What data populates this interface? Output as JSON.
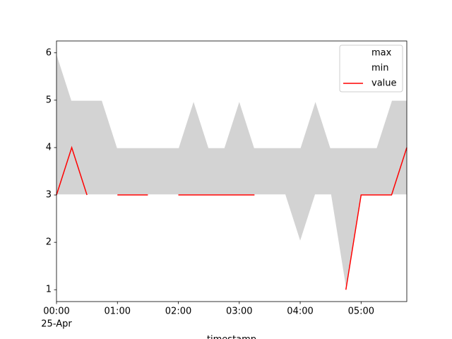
{
  "chart_data": {
    "type": "line",
    "x": [
      "00:00",
      "00:15",
      "00:30",
      "00:45",
      "01:00",
      "01:15",
      "01:30",
      "01:45",
      "02:00",
      "02:15",
      "02:30",
      "02:45",
      "03:00",
      "03:15",
      "03:30",
      "03:45",
      "04:00",
      "04:15",
      "04:30",
      "04:45",
      "05:00",
      "05:15",
      "05:30",
      "05:45"
    ],
    "series": [
      {
        "name": "max",
        "color": "#ffffff",
        "values": [
          6,
          5,
          5,
          5,
          4,
          4,
          4,
          4,
          4,
          5,
          4,
          4,
          5,
          4,
          4,
          4,
          4,
          5,
          4,
          4,
          4,
          4,
          5,
          5
        ]
      },
      {
        "name": "min",
        "color": "#ffffff",
        "values": [
          3,
          3,
          3,
          3,
          3,
          3,
          3,
          3,
          3,
          3,
          3,
          3,
          3,
          3,
          3,
          3,
          2,
          3,
          3,
          1,
          3,
          3,
          3,
          3
        ]
      },
      {
        "name": "value",
        "color": "#ff0000",
        "values": [
          3,
          4,
          3,
          null,
          3,
          3,
          3,
          null,
          3,
          3,
          3,
          3,
          3,
          3,
          null,
          null,
          null,
          null,
          null,
          1,
          3,
          3,
          3,
          4
        ]
      }
    ],
    "fill_color": "#d3d3d3",
    "xlabel": "timestamp",
    "x_date_label": "25-Apr",
    "xlim": [
      "00:00",
      "05:45"
    ],
    "xticks": [
      "00:00",
      "01:00",
      "02:00",
      "03:00",
      "04:00",
      "05:00"
    ],
    "ylim": [
      0.75,
      6.25
    ],
    "yticks": [
      1,
      2,
      3,
      4,
      5,
      6
    ],
    "grid": false,
    "legend": "upper right"
  }
}
